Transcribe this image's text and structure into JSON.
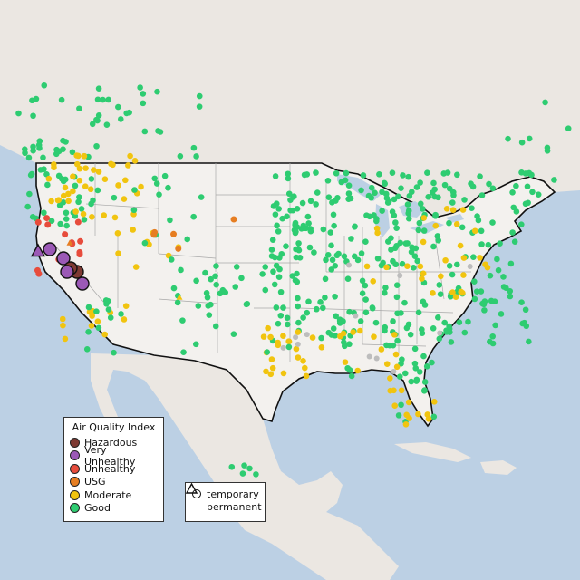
{
  "legend": {
    "title": "Air Quality Index",
    "categories": [
      {
        "label": "Hazardous",
        "color": "#7e3a33"
      },
      {
        "label": "Very Unhealthy",
        "color": "#9b59b6"
      },
      {
        "label": "Unhealthy",
        "color": "#e74c3c"
      },
      {
        "label": "USG",
        "color": "#e67e22"
      },
      {
        "label": "Moderate",
        "color": "#f1c40f"
      },
      {
        "label": "Good",
        "color": "#2ecc71"
      }
    ],
    "no_data_color": "#bdbdbd",
    "shapes": [
      {
        "label": "temporary",
        "shape": "circle"
      },
      {
        "label": "permanent",
        "shape": "triangle"
      }
    ]
  },
  "colors": {
    "ocean": "#bcd0e4",
    "land": "#ece9e4",
    "us_land": "#f1efec",
    "border": "#111111",
    "state_lines": "#9a9a9a"
  }
}
